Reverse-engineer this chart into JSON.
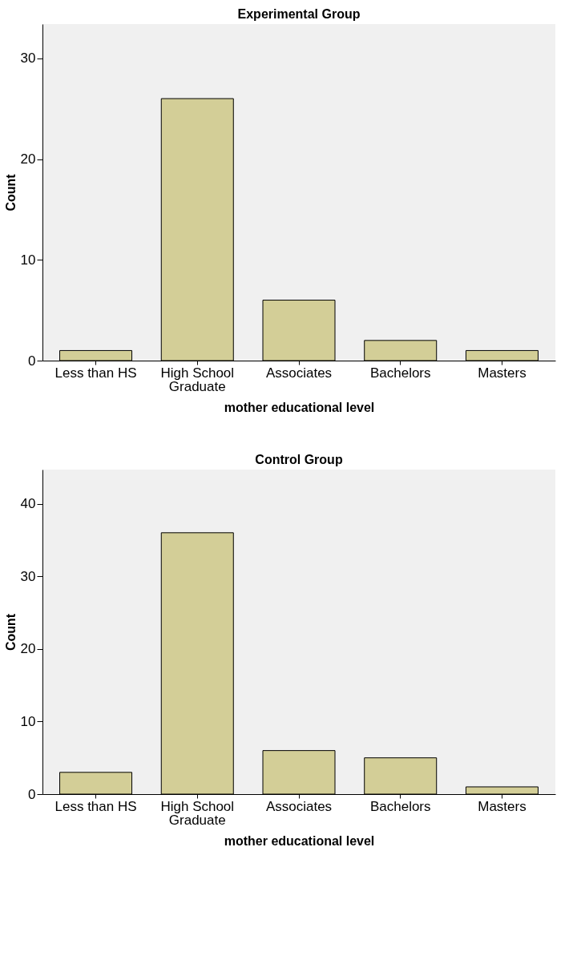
{
  "chart_data": [
    {
      "type": "bar",
      "title": "Experimental Group",
      "xlabel": "mother educational level",
      "ylabel": "Count",
      "categories": [
        "Less than HS",
        "High School\nGraduate",
        "Associates",
        "Bachelors",
        "Masters"
      ],
      "values": [
        1,
        26,
        6,
        2,
        1
      ],
      "color": "#d3ce97",
      "ylim": [
        0,
        33.4
      ],
      "yticks": [
        0,
        10,
        20,
        30
      ],
      "grid": false
    },
    {
      "type": "bar",
      "title": "Control Group",
      "xlabel": "mother educational level",
      "ylabel": "Count",
      "categories": [
        "Less than HS",
        "High School\nGraduate",
        "Associates",
        "Bachelors",
        "Masters"
      ],
      "values": [
        3,
        36,
        6,
        5,
        1
      ],
      "color": "#d3ce97",
      "ylim": [
        0,
        44.7
      ],
      "yticks": [
        0,
        10,
        20,
        30,
        40
      ],
      "grid": false
    }
  ]
}
